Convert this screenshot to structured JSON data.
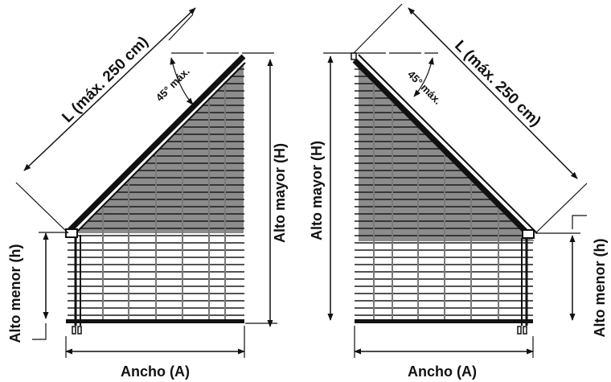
{
  "colors": {
    "line": "#111111",
    "slat": "#1a1a1a",
    "shade": "#8c8c8c",
    "cord": "#7a7a7a",
    "background": "#ffffff"
  },
  "left_diagram": {
    "length_label": "L (máx. 250 cm)",
    "angle_label": "45° máx.",
    "height_major_label": "Alto mayor (H)",
    "height_minor_label": "Alto menor (h)",
    "width_label": "Ancho (A)"
  },
  "right_diagram": {
    "length_label": "L (máx. 250 cm)",
    "angle_label": "45° máx.",
    "height_major_label": "Alto mayor (H)",
    "height_minor_label": "Alto menor (h)",
    "width_label": "Ancho (A)"
  }
}
